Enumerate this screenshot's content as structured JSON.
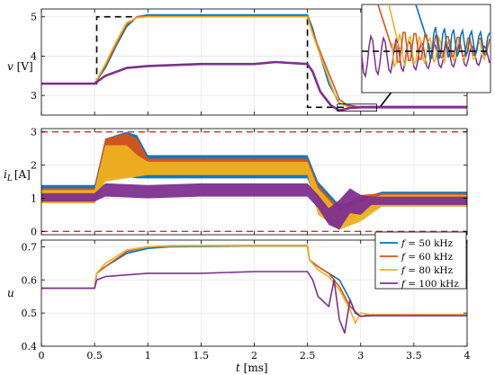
{
  "chart_data": [
    {
      "type": "line",
      "panel": "top",
      "ylabel": "v [V]",
      "xlim": [
        0,
        4
      ],
      "ylim": [
        2.5,
        5.2
      ],
      "yticks": [
        "3",
        "4",
        "5"
      ],
      "grid": true,
      "series": [
        {
          "name": "reference",
          "color": "#000000",
          "dash": true,
          "x": [
            0,
            0.52,
            0.52,
            2.5,
            2.5,
            4
          ],
          "y": [
            3.3,
            3.3,
            5.0,
            5.0,
            2.7,
            2.7
          ]
        },
        {
          "name": "f = 50 kHz",
          "color": "#0072BD",
          "x": [
            0,
            0.5,
            0.6,
            0.7,
            0.8,
            0.9,
            1.0,
            1.1,
            2.5,
            2.55,
            2.6,
            2.7,
            2.8,
            2.9,
            3.0,
            3.1,
            4
          ],
          "y": [
            3.3,
            3.3,
            3.7,
            4.25,
            4.75,
            5.0,
            5.05,
            5.05,
            5.05,
            4.7,
            4.2,
            3.3,
            2.8,
            2.75,
            2.7,
            2.72,
            2.72
          ]
        },
        {
          "name": "f = 60 kHz",
          "color": "#D95319",
          "x": [
            0,
            0.5,
            0.6,
            0.7,
            0.8,
            0.9,
            1.0,
            2.5,
            2.55,
            2.65,
            2.8,
            2.9,
            3.0,
            4
          ],
          "y": [
            3.3,
            3.3,
            3.75,
            4.3,
            4.8,
            5.0,
            5.02,
            5.02,
            4.6,
            3.9,
            2.9,
            2.7,
            2.72,
            2.72
          ]
        },
        {
          "name": "f = 80 kHz",
          "color": "#EDB120",
          "x": [
            0,
            0.5,
            0.6,
            0.7,
            0.8,
            0.9,
            1.0,
            2.5,
            2.55,
            2.65,
            2.78,
            2.9,
            3.0,
            4
          ],
          "y": [
            3.3,
            3.3,
            3.8,
            4.35,
            4.85,
            4.98,
            5.0,
            5.0,
            4.55,
            3.8,
            2.85,
            2.68,
            2.71,
            2.71
          ]
        },
        {
          "name": "f = 100 kHz",
          "color": "#7E2F8E",
          "x": [
            0,
            0.5,
            0.6,
            0.8,
            1.0,
            1.5,
            2.0,
            2.2,
            2.5,
            2.55,
            2.62,
            2.72,
            2.8,
            2.9,
            3.0,
            4
          ],
          "y": [
            3.3,
            3.3,
            3.5,
            3.7,
            3.75,
            3.8,
            3.8,
            3.85,
            3.8,
            3.6,
            3.1,
            2.75,
            2.62,
            2.68,
            2.7,
            2.7
          ]
        }
      ]
    },
    {
      "type": "line",
      "panel": "middle",
      "ylabel": "i_L [A]",
      "xlim": [
        0,
        4
      ],
      "ylim": [
        -0.1,
        3.1
      ],
      "yticks": [
        "0",
        "1",
        "2",
        "3"
      ],
      "grid": true,
      "series": [
        {
          "name": "limits",
          "color": "#E3262B",
          "dash": true,
          "x": [
            0,
            4
          ],
          "y_upper": 3.0,
          "y_lower": 0.0
        },
        {
          "name": "f = 50 kHz",
          "color": "#0072BD",
          "x": [
            0,
            0.5,
            0.6,
            0.8,
            0.9,
            1.0,
            2.5,
            2.6,
            2.8,
            3.0,
            3.2,
            4
          ],
          "lower": [
            0.85,
            0.85,
            1.6,
            1.65,
            1.6,
            1.6,
            1.6,
            0.7,
            0.3,
            0.5,
            0.75,
            0.75
          ],
          "upper": [
            1.4,
            1.4,
            2.8,
            3.0,
            2.9,
            2.3,
            2.3,
            1.5,
            0.8,
            1.0,
            1.2,
            1.2
          ]
        },
        {
          "name": "f = 60 kHz",
          "color": "#D95319",
          "x": [
            0,
            0.5,
            0.6,
            0.8,
            0.9,
            1.0,
            2.5,
            2.6,
            2.8,
            3.0,
            3.2,
            4
          ],
          "lower": [
            0.9,
            0.9,
            1.6,
            1.7,
            1.7,
            1.7,
            1.7,
            0.6,
            0.2,
            0.5,
            0.8,
            0.8
          ],
          "upper": [
            1.3,
            1.3,
            2.8,
            2.95,
            2.8,
            2.2,
            2.2,
            1.4,
            0.7,
            1.1,
            1.15,
            1.15
          ]
        },
        {
          "name": "f = 80 kHz",
          "color": "#EDB120",
          "x": [
            0,
            0.5,
            0.6,
            0.8,
            0.9,
            1.0,
            2.5,
            2.6,
            2.8,
            3.0,
            3.2,
            4
          ],
          "lower": [
            0.85,
            0.85,
            1.5,
            1.6,
            1.65,
            1.7,
            1.7,
            0.5,
            0.05,
            0.3,
            0.75,
            0.75
          ],
          "upper": [
            1.25,
            1.25,
            2.6,
            2.6,
            2.3,
            2.1,
            2.1,
            1.3,
            0.6,
            0.9,
            1.1,
            1.1
          ]
        },
        {
          "name": "f = 100 kHz",
          "color": "#7E2F8E",
          "x": [
            0,
            0.5,
            0.6,
            1.0,
            1.5,
            2.0,
            2.5,
            2.6,
            2.7,
            2.8,
            2.9,
            3.0,
            3.1,
            3.2,
            4
          ],
          "lower": [
            0.9,
            0.9,
            1.05,
            1.0,
            1.05,
            1.05,
            1.05,
            0.7,
            0.2,
            0.05,
            0.55,
            0.5,
            0.8,
            0.8,
            0.8
          ],
          "upper": [
            1.15,
            1.15,
            1.45,
            1.4,
            1.45,
            1.45,
            1.45,
            1.1,
            0.7,
            0.95,
            1.3,
            1.1,
            1.05,
            1.05,
            1.05
          ]
        }
      ]
    },
    {
      "type": "line",
      "panel": "bottom",
      "ylabel": "u",
      "xlabel": "t [ms]",
      "xlim": [
        0,
        4
      ],
      "ylim": [
        0.4,
        0.72
      ],
      "xticks": [
        "0",
        "0.5",
        "1",
        "1.5",
        "2",
        "2.5",
        "3",
        "3.5",
        "4"
      ],
      "yticks": [
        "0.4",
        "0.5",
        "0.6",
        "0.7"
      ],
      "grid": true,
      "legend": "top-right",
      "series": [
        {
          "name": "f = 50 kHz",
          "color": "#0072BD",
          "x": [
            0,
            0.5,
            0.52,
            0.6,
            0.8,
            1.0,
            1.2,
            2.0,
            2.5,
            2.52,
            2.6,
            2.7,
            2.8,
            2.85,
            2.9,
            2.95,
            3.0,
            3.1,
            4
          ],
          "y": [
            0.575,
            0.575,
            0.62,
            0.64,
            0.68,
            0.695,
            0.7,
            0.702,
            0.702,
            0.66,
            0.64,
            0.62,
            0.6,
            0.57,
            0.54,
            0.5,
            0.49,
            0.495,
            0.495
          ]
        },
        {
          "name": "f = 60 kHz",
          "color": "#D95319",
          "x": [
            0,
            0.5,
            0.52,
            0.6,
            0.8,
            1.0,
            1.2,
            2.0,
            2.5,
            2.52,
            2.6,
            2.7,
            2.8,
            2.9,
            3.0,
            3.1,
            4
          ],
          "y": [
            0.575,
            0.575,
            0.62,
            0.64,
            0.685,
            0.7,
            0.703,
            0.704,
            0.704,
            0.66,
            0.64,
            0.62,
            0.58,
            0.52,
            0.49,
            0.495,
            0.495
          ]
        },
        {
          "name": "f = 80 kHz",
          "color": "#EDB120",
          "x": [
            0,
            0.5,
            0.52,
            0.6,
            0.8,
            1.0,
            1.2,
            2.0,
            2.5,
            2.52,
            2.6,
            2.7,
            2.8,
            2.9,
            2.95,
            3.0,
            3.1,
            4
          ],
          "y": [
            0.575,
            0.575,
            0.62,
            0.65,
            0.69,
            0.7,
            0.702,
            0.703,
            0.703,
            0.66,
            0.63,
            0.61,
            0.57,
            0.51,
            0.47,
            0.5,
            0.495,
            0.495
          ]
        },
        {
          "name": "f = 100 kHz",
          "color": "#7E2F8E",
          "x": [
            0,
            0.5,
            0.52,
            0.6,
            0.8,
            1.0,
            1.5,
            2.0,
            2.2,
            2.5,
            2.55,
            2.6,
            2.7,
            2.75,
            2.8,
            2.85,
            2.9,
            2.95,
            3.0,
            3.1,
            4
          ],
          "y": [
            0.575,
            0.575,
            0.6,
            0.61,
            0.615,
            0.62,
            0.62,
            0.625,
            0.625,
            0.625,
            0.6,
            0.55,
            0.52,
            0.6,
            0.48,
            0.44,
            0.54,
            0.5,
            0.49,
            0.492,
            0.492
          ]
        }
      ]
    }
  ],
  "labels": {
    "v_label": "v [V]",
    "v_var": "v",
    "v_unit": "[V]",
    "i_var": "i",
    "i_sub": "L",
    "i_unit": "[A]",
    "u_var": "u",
    "t_var": "t",
    "t_unit": "[ms]"
  },
  "legend": {
    "entries": [
      {
        "var": "f",
        "text": "= 50 kHz",
        "color": "#0072BD"
      },
      {
        "var": "f",
        "text": "= 60 kHz",
        "color": "#D95319"
      },
      {
        "var": "f",
        "text": "= 80 kHz",
        "color": "#EDB120"
      },
      {
        "var": "f",
        "text": "= 100 kHz",
        "color": "#7E2F8E"
      }
    ]
  }
}
